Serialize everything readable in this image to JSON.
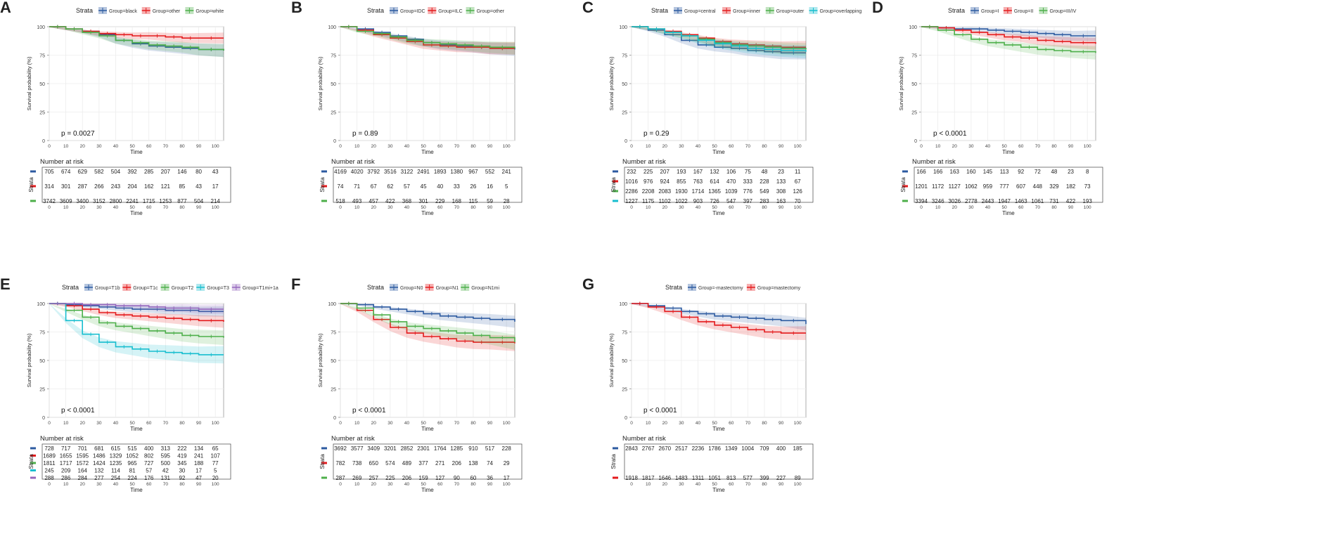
{
  "figure": {
    "common": {
      "legend_title": "Strata",
      "xlabel": "Time",
      "ylabel": "Survival probability (%)",
      "risk_title": "Number at risk",
      "risk_ylabel": "Strata",
      "xticks": [
        0,
        10,
        20,
        30,
        40,
        50,
        60,
        70,
        80,
        90,
        100
      ],
      "yticks": [
        0,
        25,
        50,
        75,
        100
      ],
      "xlim": [
        0,
        105
      ],
      "ylim": [
        0,
        100
      ]
    }
  },
  "chart_data": [
    {
      "panel": "A",
      "type": "line",
      "title": "",
      "pvalue": "p = 0.0027",
      "series": [
        {
          "name": "Group=black",
          "color": "#2c5aa0",
          "x": [
            0,
            10,
            20,
            30,
            40,
            50,
            60,
            70,
            80,
            90,
            105
          ],
          "y": [
            100,
            98,
            96,
            93,
            88,
            85,
            83,
            82,
            81,
            80,
            79
          ]
        },
        {
          "name": "Group=other",
          "color": "#e41a1c",
          "x": [
            0,
            10,
            20,
            30,
            40,
            50,
            60,
            70,
            80,
            90,
            105
          ],
          "y": [
            100,
            98,
            96,
            94,
            93,
            92,
            92,
            91,
            90,
            90,
            90
          ]
        },
        {
          "name": "Group=white",
          "color": "#4daf4a",
          "x": [
            0,
            10,
            20,
            30,
            40,
            50,
            60,
            70,
            80,
            90,
            105
          ],
          "y": [
            100,
            98,
            95,
            92,
            88,
            86,
            84,
            83,
            82,
            80,
            79
          ]
        }
      ],
      "risk_table": [
        [
          "705",
          "674",
          "629",
          "582",
          "504",
          "392",
          "285",
          "207",
          "146",
          "80",
          "43"
        ],
        [
          "314",
          "301",
          "287",
          "266",
          "243",
          "204",
          "162",
          "121",
          "85",
          "43",
          "17"
        ],
        [
          "3742",
          "3609",
          "3400",
          "3152",
          "2800",
          "2241",
          "1715",
          "1253",
          "877",
          "504",
          "214"
        ]
      ]
    },
    {
      "panel": "B",
      "type": "line",
      "title": "",
      "pvalue": "p = 0.89",
      "series": [
        {
          "name": "Group=IDC",
          "color": "#2c5aa0",
          "x": [
            0,
            10,
            20,
            30,
            40,
            50,
            60,
            70,
            80,
            90,
            105
          ],
          "y": [
            100,
            98,
            95,
            92,
            89,
            86,
            84,
            83,
            82,
            81,
            80
          ]
        },
        {
          "name": "Group=ILC",
          "color": "#e41a1c",
          "x": [
            0,
            10,
            20,
            30,
            40,
            50,
            60,
            70,
            80,
            90,
            105
          ],
          "y": [
            100,
            97,
            93,
            90,
            87,
            84,
            83,
            82,
            82,
            81,
            81
          ]
        },
        {
          "name": "Group=other",
          "color": "#4daf4a",
          "x": [
            0,
            10,
            20,
            30,
            40,
            50,
            60,
            70,
            80,
            90,
            105
          ],
          "y": [
            100,
            96,
            94,
            91,
            88,
            86,
            85,
            84,
            83,
            82,
            81
          ]
        }
      ],
      "risk_table": [
        [
          "4169",
          "4020",
          "3792",
          "3516",
          "3122",
          "2491",
          "1893",
          "1380",
          "967",
          "552",
          "241"
        ],
        [
          "74",
          "71",
          "67",
          "62",
          "57",
          "45",
          "40",
          "33",
          "26",
          "16",
          "5"
        ],
        [
          "518",
          "493",
          "457",
          "422",
          "368",
          "301",
          "229",
          "168",
          "115",
          "59",
          "28"
        ]
      ]
    },
    {
      "panel": "C",
      "type": "line",
      "title": "",
      "pvalue": "p = 0.29",
      "series": [
        {
          "name": "Group=central",
          "color": "#2c5aa0",
          "x": [
            0,
            10,
            20,
            30,
            40,
            50,
            60,
            70,
            80,
            90,
            105
          ],
          "y": [
            100,
            97,
            93,
            88,
            84,
            82,
            81,
            79,
            78,
            77,
            77
          ]
        },
        {
          "name": "Group=inner",
          "color": "#e41a1c",
          "x": [
            0,
            10,
            20,
            30,
            40,
            50,
            60,
            70,
            80,
            90,
            105
          ],
          "y": [
            100,
            98,
            96,
            93,
            90,
            87,
            85,
            84,
            83,
            82,
            82
          ]
        },
        {
          "name": "Group=outer",
          "color": "#4daf4a",
          "x": [
            0,
            10,
            20,
            30,
            40,
            50,
            60,
            70,
            80,
            90,
            105
          ],
          "y": [
            100,
            98,
            95,
            92,
            89,
            86,
            84,
            83,
            82,
            81,
            80
          ]
        },
        {
          "name": "Group=overlapping",
          "color": "#17becf",
          "x": [
            0,
            10,
            20,
            30,
            40,
            50,
            60,
            70,
            80,
            90,
            105
          ],
          "y": [
            100,
            98,
            95,
            92,
            88,
            85,
            83,
            81,
            80,
            79,
            78
          ]
        }
      ],
      "risk_table": [
        [
          "232",
          "225",
          "207",
          "193",
          "167",
          "132",
          "106",
          "75",
          "48",
          "23",
          "11"
        ],
        [
          "1016",
          "976",
          "924",
          "855",
          "763",
          "614",
          "470",
          "333",
          "228",
          "133",
          "67"
        ],
        [
          "2286",
          "2208",
          "2083",
          "1930",
          "1714",
          "1365",
          "1039",
          "776",
          "549",
          "308",
          "126"
        ],
        [
          "1227",
          "1175",
          "1102",
          "1022",
          "903",
          "726",
          "547",
          "397",
          "283",
          "163",
          "70"
        ]
      ]
    },
    {
      "panel": "D",
      "type": "line",
      "title": "",
      "pvalue": "p < 0.0001",
      "series": [
        {
          "name": "Group=I",
          "color": "#2c5aa0",
          "x": [
            0,
            10,
            20,
            30,
            40,
            50,
            60,
            70,
            80,
            90,
            105
          ],
          "y": [
            100,
            99,
            98,
            98,
            97,
            96,
            95,
            94,
            93,
            92,
            92
          ]
        },
        {
          "name": "Group=II",
          "color": "#e41a1c",
          "x": [
            0,
            10,
            20,
            30,
            40,
            50,
            60,
            70,
            80,
            90,
            105
          ],
          "y": [
            100,
            99,
            97,
            95,
            93,
            91,
            90,
            88,
            87,
            86,
            85
          ]
        },
        {
          "name": "Group=III/IV",
          "color": "#4daf4a",
          "x": [
            0,
            10,
            20,
            30,
            40,
            50,
            60,
            70,
            80,
            90,
            105
          ],
          "y": [
            100,
            97,
            93,
            89,
            86,
            84,
            82,
            80,
            79,
            78,
            77
          ]
        }
      ],
      "risk_table": [
        [
          "166",
          "166",
          "163",
          "160",
          "145",
          "113",
          "92",
          "72",
          "48",
          "23",
          "8"
        ],
        [
          "1201",
          "1172",
          "1127",
          "1062",
          "959",
          "777",
          "607",
          "448",
          "329",
          "182",
          "73"
        ],
        [
          "3394",
          "3246",
          "3026",
          "2778",
          "2443",
          "1947",
          "1463",
          "1061",
          "731",
          "422",
          "193"
        ]
      ]
    },
    {
      "panel": "E",
      "type": "line",
      "title": "",
      "pvalue": "p < 0.0001",
      "series": [
        {
          "name": "Group=T1b",
          "color": "#2c5aa0",
          "x": [
            0,
            10,
            20,
            30,
            40,
            50,
            60,
            70,
            80,
            90,
            105
          ],
          "y": [
            100,
            99,
            98,
            97,
            96,
            95,
            95,
            94,
            94,
            93,
            93
          ]
        },
        {
          "name": "Group=T1c",
          "color": "#e41a1c",
          "x": [
            0,
            10,
            20,
            30,
            40,
            50,
            60,
            70,
            80,
            90,
            105
          ],
          "y": [
            100,
            98,
            95,
            92,
            90,
            89,
            88,
            87,
            86,
            85,
            84
          ]
        },
        {
          "name": "Group=T2",
          "color": "#4daf4a",
          "x": [
            0,
            10,
            20,
            30,
            40,
            50,
            60,
            70,
            80,
            90,
            105
          ],
          "y": [
            100,
            94,
            88,
            83,
            80,
            78,
            76,
            74,
            72,
            71,
            70
          ]
        },
        {
          "name": "Group=T3",
          "color": "#17becf",
          "x": [
            0,
            10,
            20,
            30,
            40,
            50,
            60,
            70,
            80,
            90,
            105
          ],
          "y": [
            100,
            85,
            73,
            66,
            62,
            60,
            58,
            57,
            56,
            55,
            55
          ]
        },
        {
          "name": "Group=T1mi+1a",
          "color": "#9467bd",
          "x": [
            0,
            10,
            20,
            30,
            40,
            50,
            60,
            70,
            80,
            90,
            105
          ],
          "y": [
            100,
            100,
            99,
            99,
            98,
            98,
            97,
            96,
            96,
            95,
            95
          ]
        }
      ],
      "risk_table": [
        [
          "728",
          "717",
          "701",
          "681",
          "615",
          "515",
          "400",
          "313",
          "222",
          "134",
          "65"
        ],
        [
          "1689",
          "1655",
          "1595",
          "1486",
          "1329",
          "1052",
          "802",
          "595",
          "419",
          "241",
          "107"
        ],
        [
          "1811",
          "1717",
          "1572",
          "1424",
          "1235",
          "965",
          "727",
          "500",
          "345",
          "188",
          "77"
        ],
        [
          "245",
          "209",
          "164",
          "132",
          "114",
          "81",
          "57",
          "42",
          "30",
          "17",
          "5"
        ],
        [
          "288",
          "286",
          "284",
          "277",
          "254",
          "224",
          "176",
          "131",
          "92",
          "47",
          "20"
        ]
      ]
    },
    {
      "panel": "F",
      "type": "line",
      "title": "",
      "pvalue": "p < 0.0001",
      "series": [
        {
          "name": "Group=N0",
          "color": "#2c5aa0",
          "x": [
            0,
            10,
            20,
            30,
            40,
            50,
            60,
            70,
            80,
            90,
            105
          ],
          "y": [
            100,
            99,
            97,
            95,
            93,
            91,
            89,
            88,
            87,
            86,
            84
          ]
        },
        {
          "name": "Group=N1",
          "color": "#e41a1c",
          "x": [
            0,
            10,
            20,
            30,
            40,
            50,
            60,
            70,
            80,
            90,
            105
          ],
          "y": [
            100,
            94,
            86,
            79,
            74,
            71,
            69,
            67,
            66,
            66,
            65
          ]
        },
        {
          "name": "Group=N1mi",
          "color": "#4daf4a",
          "x": [
            0,
            10,
            20,
            30,
            40,
            50,
            60,
            70,
            80,
            90,
            105
          ],
          "y": [
            100,
            96,
            90,
            84,
            80,
            78,
            76,
            74,
            72,
            70,
            66
          ]
        }
      ],
      "risk_table": [
        [
          "3692",
          "3577",
          "3409",
          "3201",
          "2852",
          "2301",
          "1764",
          "1285",
          "910",
          "517",
          "228"
        ],
        [
          "782",
          "738",
          "650",
          "574",
          "489",
          "377",
          "271",
          "206",
          "138",
          "74",
          "29"
        ],
        [
          "287",
          "269",
          "257",
          "225",
          "206",
          "159",
          "127",
          "90",
          "60",
          "36",
          "17"
        ]
      ]
    },
    {
      "panel": "G",
      "type": "line",
      "title": "",
      "pvalue": "p < 0.0001",
      "series": [
        {
          "name": "Group=-mastectomy",
          "color": "#2c5aa0",
          "x": [
            0,
            10,
            20,
            30,
            40,
            50,
            60,
            70,
            80,
            90,
            105
          ],
          "y": [
            100,
            98,
            96,
            93,
            91,
            89,
            88,
            87,
            86,
            85,
            82
          ]
        },
        {
          "name": "Group=mastectomy",
          "color": "#e41a1c",
          "x": [
            0,
            10,
            20,
            30,
            40,
            50,
            60,
            70,
            80,
            90,
            105
          ],
          "y": [
            100,
            97,
            93,
            88,
            84,
            81,
            79,
            77,
            75,
            74,
            74
          ]
        }
      ],
      "risk_table": [
        [
          "2843",
          "2767",
          "2670",
          "2517",
          "2236",
          "1786",
          "1349",
          "1004",
          "709",
          "400",
          "185"
        ],
        [
          "1918",
          "1817",
          "1646",
          "1483",
          "1311",
          "1051",
          "813",
          "577",
          "399",
          "227",
          "89"
        ]
      ]
    }
  ]
}
